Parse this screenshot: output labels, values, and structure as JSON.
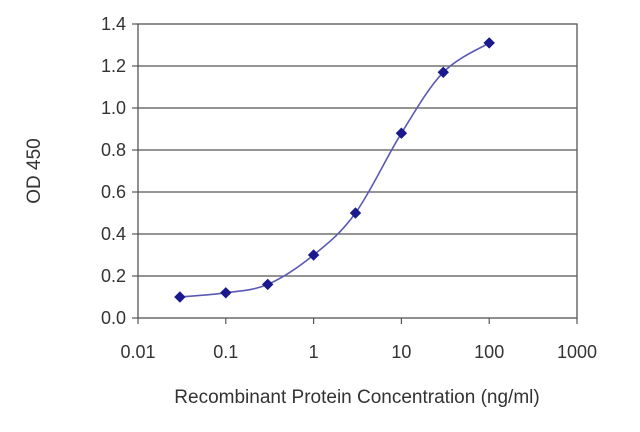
{
  "chart_data": {
    "type": "line",
    "xscale": "log",
    "xlabel": "Recombinant Protein Concentration (ng/ml)",
    "ylabel": "OD 450",
    "xlim": [
      0.01,
      1000
    ],
    "ylim": [
      0.0,
      1.4
    ],
    "xticks": [
      0.01,
      0.1,
      1,
      10,
      100,
      1000
    ],
    "xtick_labels": [
      "0.01",
      "0.1",
      "1",
      "10",
      "100",
      "1000"
    ],
    "yticks": [
      0.0,
      0.2,
      0.4,
      0.6,
      0.8,
      1.0,
      1.2,
      1.4
    ],
    "ytick_labels": [
      "0.0",
      "0.2",
      "0.4",
      "0.6",
      "0.8",
      "1.0",
      "1.2",
      "1.4"
    ],
    "grid": "horizontal",
    "legend": "none",
    "series": [
      {
        "color": "#1a1a8c",
        "marker": "diamond",
        "x": [
          0.03,
          0.1,
          0.3,
          1,
          3,
          10,
          30,
          100
        ],
        "y": [
          0.1,
          0.12,
          0.16,
          0.3,
          0.5,
          0.88,
          1.17,
          1.31
        ]
      }
    ]
  }
}
